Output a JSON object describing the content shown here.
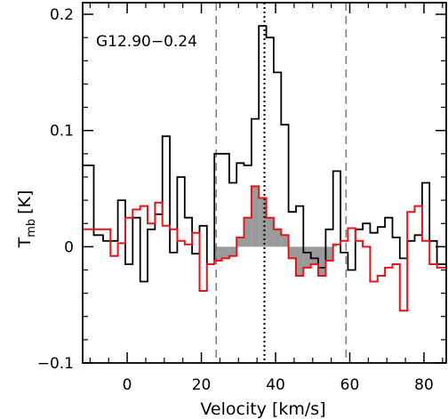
{
  "chart_data": {
    "type": "line",
    "title": "G12.90−0.24",
    "xlabel": "Velocity [km/s]",
    "ylabel": "T",
    "ylabel_sub": "mb",
    "ylabel_unit": "[K]",
    "xlim": [
      -12,
      86
    ],
    "ylim": [
      -0.1,
      0.21
    ],
    "xticks": [
      0,
      20,
      40,
      60,
      80
    ],
    "yticks": [
      -0.1,
      0,
      0.1,
      0.2
    ],
    "ytick_labels": [
      "−0.1",
      "0",
      "0.1",
      "0.2"
    ],
    "minor_xtick_step": 5,
    "minor_ytick_step": 0.02,
    "series": [
      {
        "color": "#000000",
        "step": true,
        "x": [
          -10.5,
          -7.5,
          -5.5,
          -3.5,
          -1.5,
          0.5,
          2.5,
          4.5,
          6.5,
          8.5,
          10.5,
          12.5,
          14.5,
          16.5,
          18.5,
          20.5,
          22.5,
          24.5,
          26.5,
          28.5,
          30.5,
          32.5,
          34.5,
          36.5,
          38.5,
          40.5,
          42.5,
          44.5,
          46.5,
          48.5,
          50.5,
          52.5,
          54.5,
          56.5,
          58.5,
          60.5,
          62.5,
          64.5,
          66.5,
          68.5,
          70.5,
          72.5,
          74.5,
          76.5,
          78.5,
          80.5,
          82.5,
          84.5
        ],
        "values": [
          0.07,
          0.01,
          0.005,
          0.005,
          0.04,
          -0.015,
          0.025,
          -0.03,
          0.015,
          0.028,
          0.095,
          -0.005,
          0.06,
          0.025,
          -0.006,
          0.018,
          -0.015,
          0.08,
          0.08,
          0.055,
          0.072,
          0.07,
          0.11,
          0.19,
          0.18,
          0.15,
          0.105,
          0.03,
          0.035,
          -0.005,
          -0.01,
          -0.018,
          0.015,
          0.065,
          -0.005,
          -0.02,
          0.015,
          0.02,
          0.012,
          0.017,
          0.025,
          0.008,
          -0.01,
          0.005,
          0.01,
          0.055,
          0.005,
          -0.015
        ]
      },
      {
        "color": "#e8141b",
        "step": true,
        "x": [
          -10.5,
          -7.5,
          -5.5,
          -3.5,
          -1.5,
          0.5,
          2.5,
          4.5,
          6.5,
          8.5,
          10.5,
          12.5,
          14.5,
          16.5,
          18.5,
          20.5,
          22.5,
          24.5,
          26.5,
          28.5,
          30.5,
          32.5,
          34.5,
          36.5,
          38.5,
          40.5,
          42.5,
          44.5,
          46.5,
          48.5,
          50.5,
          52.5,
          54.5,
          56.5,
          58.5,
          60.5,
          62.5,
          64.5,
          66.5,
          68.5,
          70.5,
          72.5,
          74.5,
          76.5,
          78.5,
          80.5,
          82.5,
          84.5
        ],
        "values": [
          0.015,
          0.015,
          0.015,
          -0.008,
          0.003,
          0.025,
          0.032,
          0.035,
          0.02,
          0.038,
          0.018,
          0.015,
          0.005,
          0.002,
          0.012,
          -0.038,
          -0.015,
          -0.012,
          -0.01,
          -0.008,
          0.008,
          0.025,
          0.052,
          0.042,
          0.025,
          0.015,
          0.01,
          -0.01,
          -0.025,
          -0.018,
          -0.015,
          -0.025,
          -0.012,
          0.002,
          0.005,
          0.016,
          0.005,
          0.0,
          -0.03,
          -0.025,
          -0.018,
          -0.015,
          -0.055,
          0.03,
          0.035,
          0.005,
          -0.015,
          -0.018
        ]
      }
    ],
    "shaded": {
      "color": "#9a9a9a",
      "x_min": 23.5,
      "x_max": 56.5,
      "boundary_series_index": 1
    },
    "vlines": [
      {
        "x": 24,
        "style": "dashed",
        "color": "#808080"
      },
      {
        "x": 37,
        "style": "dotted",
        "color": "#000000"
      },
      {
        "x": 59,
        "style": "dashed",
        "color": "#808080"
      }
    ]
  }
}
